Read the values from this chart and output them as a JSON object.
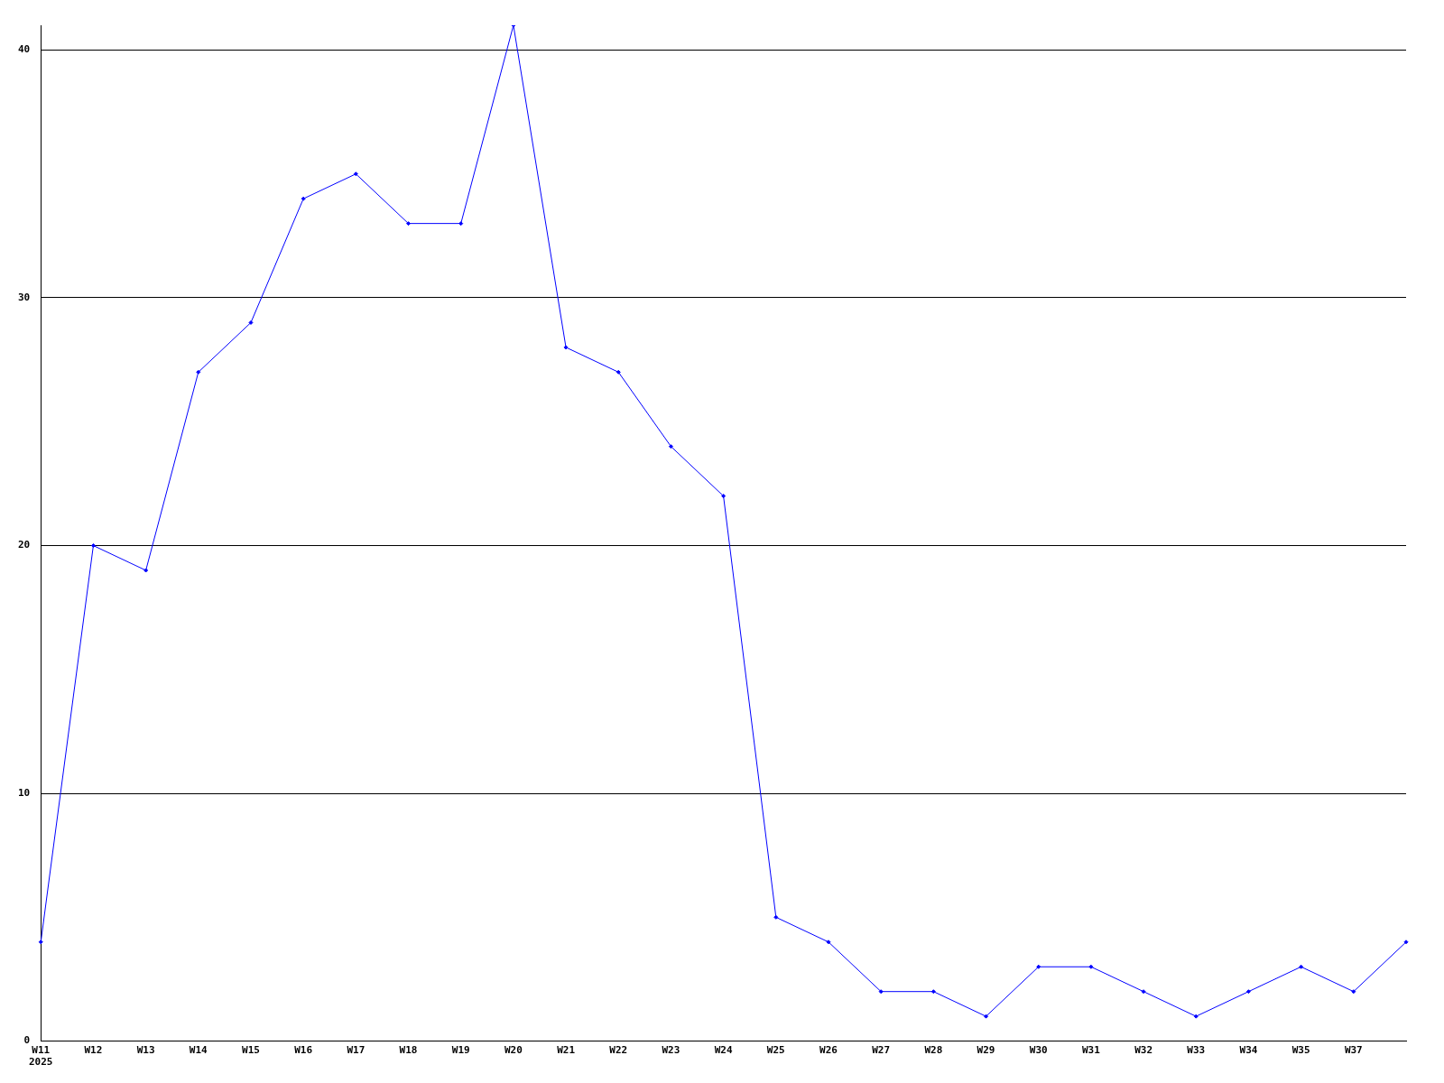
{
  "chart_data": {
    "type": "line",
    "categories": [
      "W11\n2025",
      "W12",
      "W13",
      "W14",
      "W15",
      "W16",
      "W17",
      "W18",
      "W19",
      "W20",
      "W21",
      "W22",
      "W23",
      "W24",
      "W25",
      "W26",
      "W27",
      "W28",
      "W29",
      "W30",
      "W31",
      "W32",
      "W33",
      "W34",
      "W35",
      "W37",
      null
    ],
    "series": [
      {
        "color": "#0000ff",
        "values": [
          4,
          20,
          19,
          27,
          29,
          34,
          35,
          33,
          33,
          41,
          28,
          27,
          24,
          22,
          5,
          4,
          2,
          2,
          1,
          3,
          3,
          2,
          1,
          2,
          3,
          2,
          4
        ]
      }
    ],
    "ylim": [
      0,
      41
    ],
    "yticks": [
      0,
      10,
      20,
      30,
      40
    ],
    "grid": "y",
    "legend": false,
    "marker": "diamond",
    "line_style": "solid"
  }
}
